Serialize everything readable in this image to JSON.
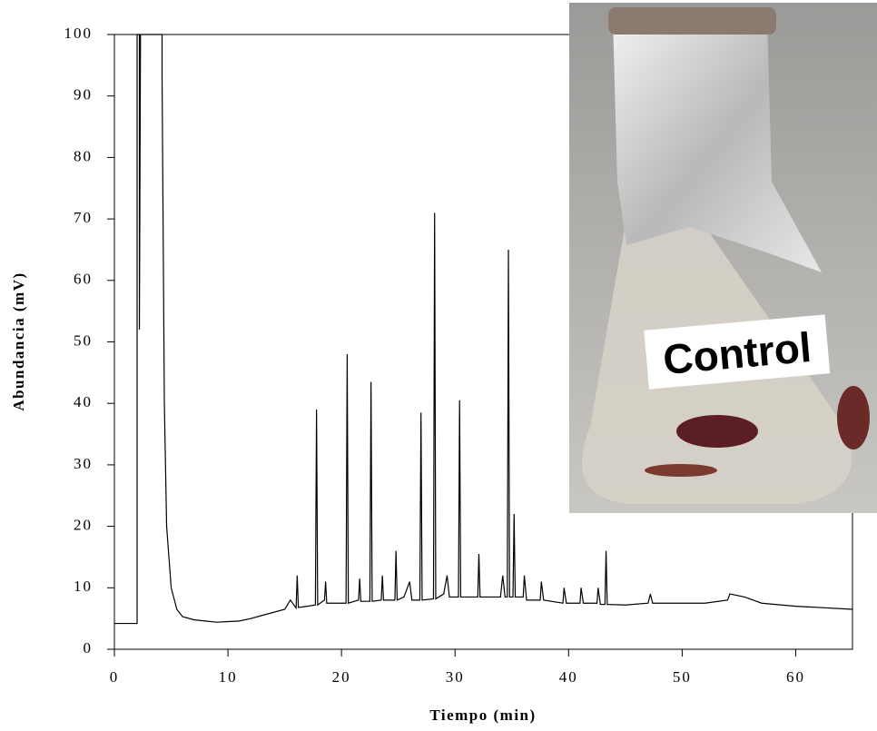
{
  "chart_data": {
    "type": "line",
    "x_label": "Tiempo (min)",
    "y_label": "Abundancia (mV)",
    "annotation": "Control",
    "xlim": [
      0,
      65
    ],
    "xticks": [
      0,
      10,
      20,
      30,
      40,
      50,
      60
    ],
    "ylim": [
      0,
      100
    ],
    "yticks": [
      0,
      10,
      20,
      30,
      40,
      50,
      60,
      70,
      80,
      90,
      100
    ],
    "color": "#000000",
    "grid": false,
    "x": [
      0,
      2.0,
      2.0,
      2.2,
      2.2,
      2.3,
      4.2,
      4.2,
      4.4,
      4.6,
      5,
      5.5,
      6,
      7,
      8,
      9,
      10,
      11,
      12,
      13,
      14,
      15,
      15.5,
      16,
      16.1,
      16.2,
      17,
      17.7,
      17.8,
      17.9,
      18.5,
      18.6,
      18.7,
      19.5,
      20.4,
      20.5,
      20.6,
      21.5,
      21.6,
      21.7,
      22.5,
      22.6,
      22.7,
      23.5,
      23.6,
      23.7,
      24.7,
      24.8,
      24.9,
      25.5,
      26,
      26.2,
      26.9,
      27,
      27.1,
      28.1,
      28.2,
      28.3,
      29,
      29.3,
      29.5,
      30.3,
      30.4,
      30.5,
      32,
      32.1,
      32.2,
      34,
      34.2,
      34.4,
      34.6,
      34.7,
      34.8,
      35.1,
      35.2,
      35.3,
      36,
      36.1,
      36.3,
      37.5,
      37.6,
      37.8,
      39.5,
      39.6,
      39.8,
      41,
      41.1,
      41.3,
      42.5,
      42.6,
      42.8,
      43.2,
      43.3,
      43.4,
      45,
      47,
      47.2,
      47.4,
      50,
      52,
      54,
      54.2,
      55.5,
      57,
      60,
      62,
      65
    ],
    "values": [
      4.2,
      4.2,
      100,
      100,
      52,
      100,
      100,
      93,
      40,
      20,
      10,
      6.5,
      5.3,
      4.8,
      4.6,
      4.4,
      4.5,
      4.6,
      5,
      5.5,
      6,
      6.5,
      8,
      6.7,
      12,
      6.8,
      7,
      7.2,
      39,
      7.2,
      8,
      11,
      7.5,
      7.5,
      7.5,
      48,
      7.5,
      8,
      11.5,
      7.8,
      7.8,
      43.5,
      7.8,
      8,
      12,
      8,
      8,
      16,
      8,
      8.5,
      11,
      8,
      8,
      38.5,
      8,
      8.2,
      71,
      8.2,
      9,
      12,
      8.5,
      8.5,
      40.5,
      8.5,
      8.5,
      15.5,
      8.5,
      8.5,
      12,
      8.5,
      8.5,
      65,
      8.5,
      8.5,
      22,
      8.5,
      8.5,
      12,
      8,
      8,
      11,
      8,
      7.5,
      10,
      7.5,
      7.5,
      10,
      7.5,
      7.5,
      10,
      7.3,
      7.3,
      16,
      7.3,
      7.2,
      7.5,
      9,
      7.5,
      7.5,
      7.5,
      8,
      9,
      8.5,
      7.5,
      7,
      6.8,
      6.5
    ]
  }
}
